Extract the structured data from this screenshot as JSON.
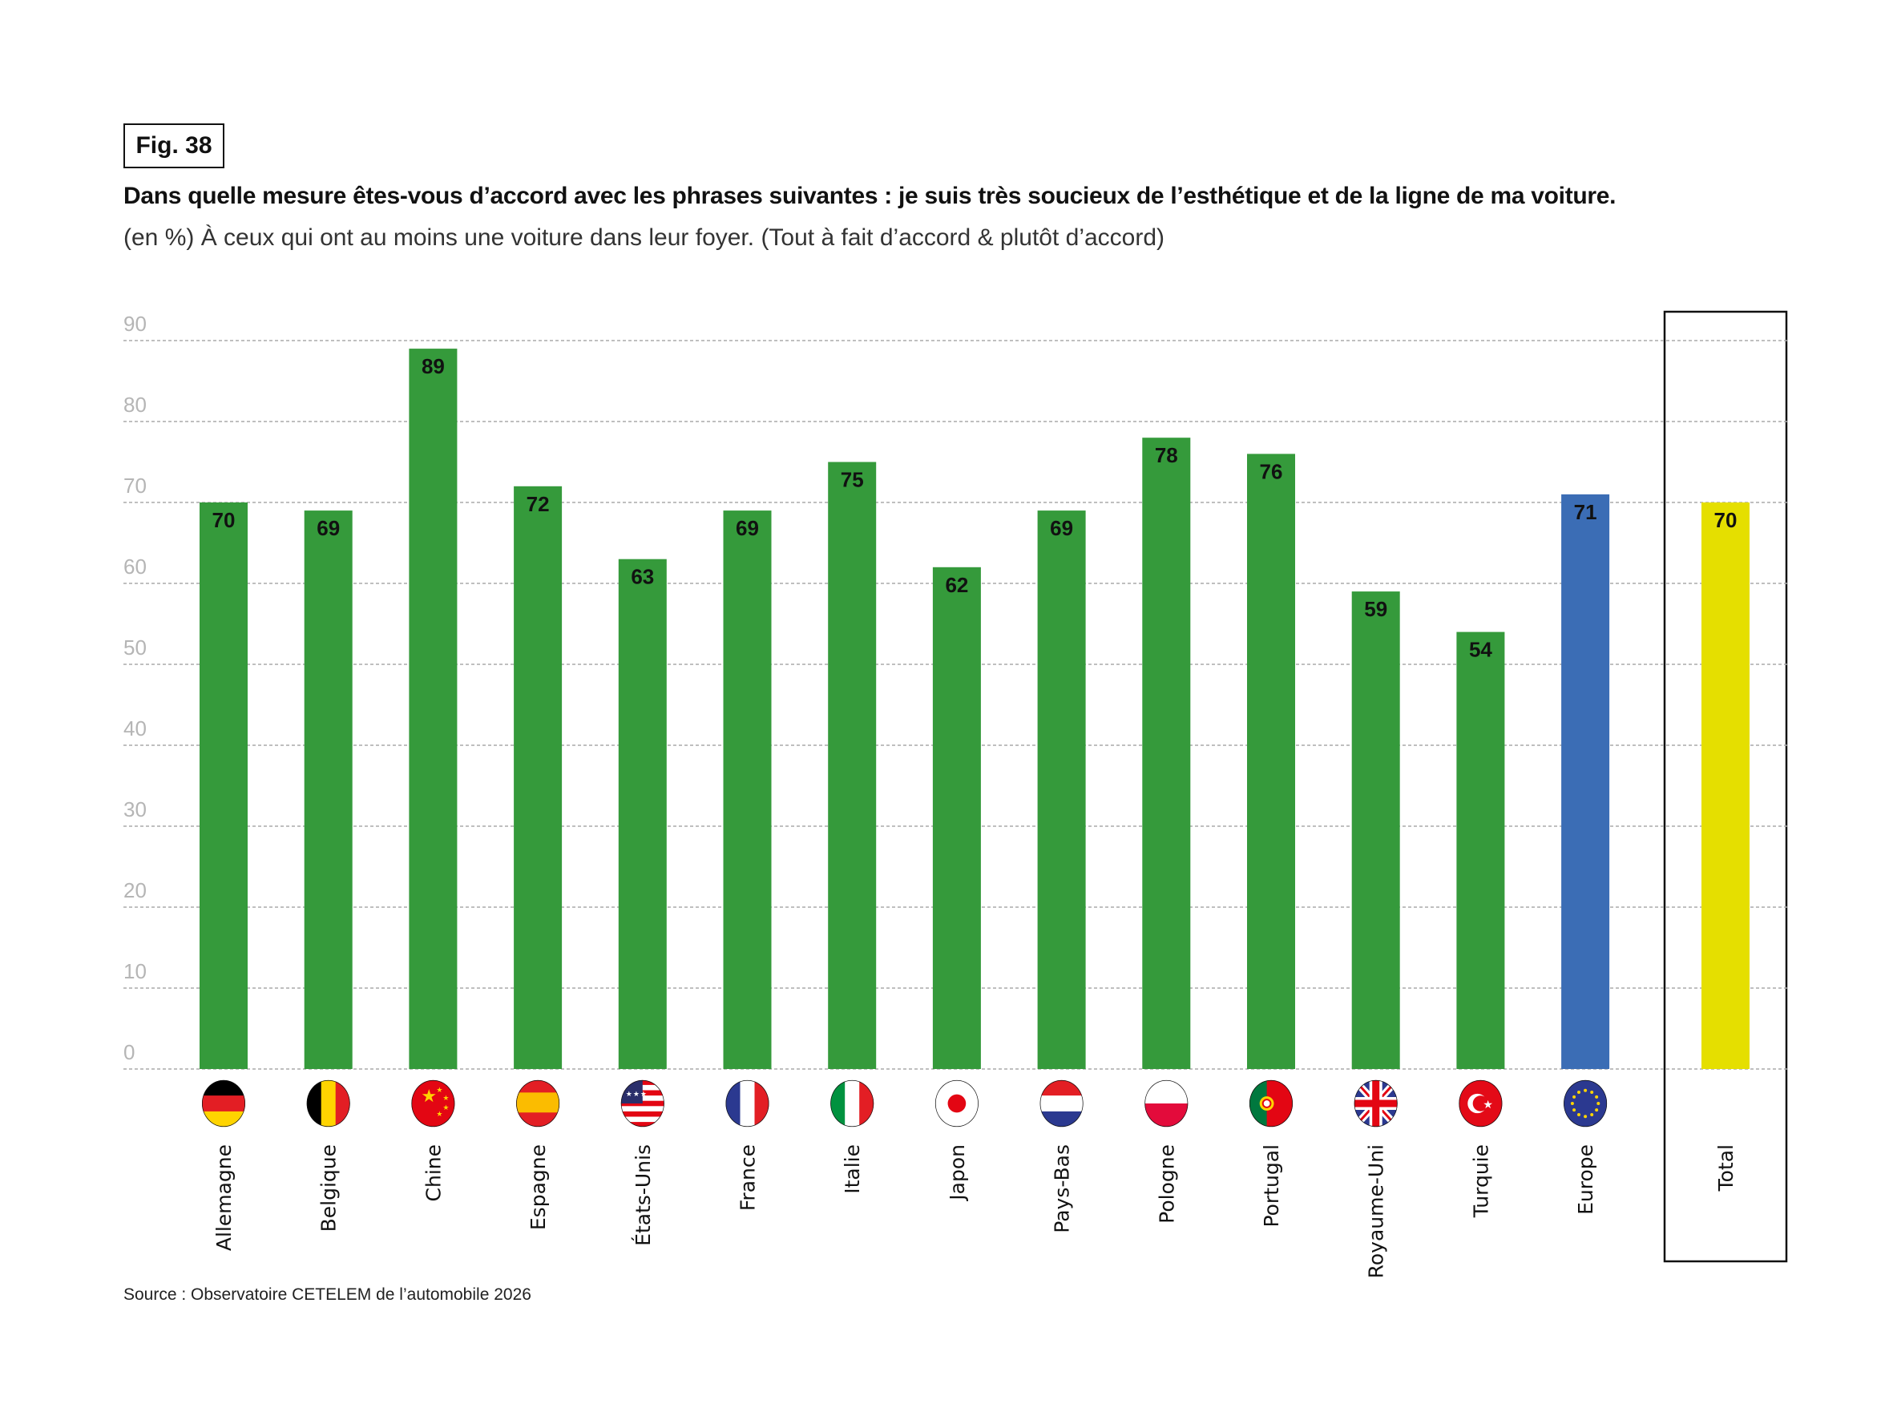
{
  "figure_label": "Fig. 38",
  "title": "Dans quelle mesure êtes-vous d’accord avec les phrases suivantes : je suis très soucieux de l’esthétique et de la ligne de ma voiture.",
  "subtitle": "(en %) À ceux qui ont au moins une voiture dans leur foyer. (Tout à fait d’accord & plutôt d’accord)",
  "source": "Source : Observatoire CETELEM de l’automobile 2026",
  "chart_data": {
    "type": "bar",
    "title": "Dans quelle mesure êtes-vous d’accord avec les phrases suivantes : je suis très soucieux de l’esthétique et de la ligne de ma voiture.",
    "xlabel": "",
    "ylabel": "%",
    "ylim": [
      0,
      90
    ],
    "yticks": [
      0,
      10,
      20,
      30,
      40,
      50,
      60,
      70,
      80,
      90
    ],
    "grid": true,
    "categories": [
      "Allemagne",
      "Belgique",
      "Chine",
      "Espagne",
      "États-Unis",
      "France",
      "Italie",
      "Japon",
      "Pays-Bas",
      "Pologne",
      "Portugal",
      "Royaume-Uni",
      "Turquie",
      "Europe",
      "Total"
    ],
    "values": [
      70,
      69,
      89,
      72,
      63,
      69,
      75,
      62,
      69,
      78,
      76,
      59,
      54,
      71,
      70
    ],
    "bar_colors": [
      "#359a3b",
      "#359a3b",
      "#359a3b",
      "#359a3b",
      "#359a3b",
      "#359a3b",
      "#359a3b",
      "#359a3b",
      "#359a3b",
      "#359a3b",
      "#359a3b",
      "#359a3b",
      "#359a3b",
      "#3b6db5",
      "#e5df00"
    ],
    "flags": [
      "germany-flag-icon",
      "belgium-flag-icon",
      "china-flag-icon",
      "spain-flag-icon",
      "usa-flag-icon",
      "france-flag-icon",
      "italy-flag-icon",
      "japan-flag-icon",
      "netherlands-flag-icon",
      "poland-flag-icon",
      "portugal-flag-icon",
      "uk-flag-icon",
      "turkey-flag-icon",
      "eu-flag-icon",
      null
    ]
  }
}
